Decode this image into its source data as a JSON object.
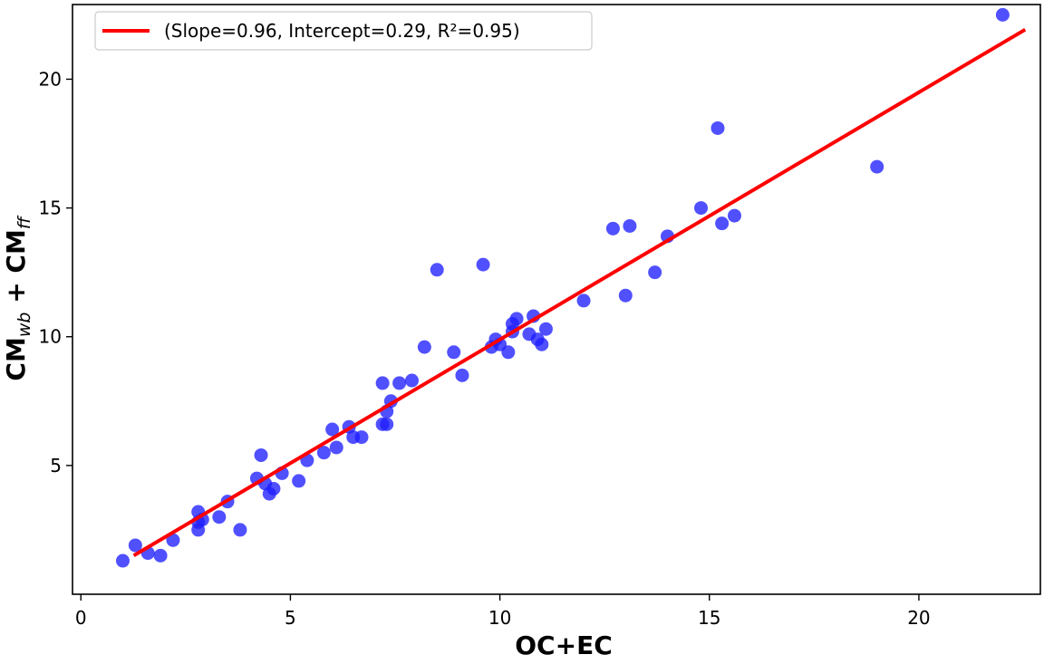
{
  "chart_data": {
    "type": "scatter",
    "xlabel": "OC+EC",
    "ylabel": {
      "base1": "CM",
      "sub1": "wb",
      "mid": " + CM",
      "sub2": "ff"
    },
    "xlim": [
      -0.2,
      22.9
    ],
    "ylim": [
      0.0,
      22.9
    ],
    "xticks": [
      0,
      5,
      10,
      15,
      20
    ],
    "yticks": [
      5,
      10,
      15,
      20
    ],
    "grid": false,
    "legend": {
      "position": "top-left",
      "label": "(Slope=0.96, Intercept=0.29, R²=0.95)"
    },
    "colors": {
      "points": "#1f1fff",
      "fit": "#ff0000"
    },
    "fit": {
      "slope": 0.96,
      "intercept": 0.29,
      "x_range": [
        1.3,
        22.5
      ]
    },
    "points": [
      [
        1.0,
        1.3
      ],
      [
        1.3,
        1.9
      ],
      [
        1.6,
        1.6
      ],
      [
        1.9,
        1.5
      ],
      [
        2.2,
        2.1
      ],
      [
        2.8,
        3.2
      ],
      [
        2.8,
        2.8
      ],
      [
        2.8,
        2.5
      ],
      [
        2.9,
        2.9
      ],
      [
        3.3,
        3.0
      ],
      [
        3.5,
        3.6
      ],
      [
        3.8,
        2.5
      ],
      [
        4.2,
        4.5
      ],
      [
        4.3,
        5.4
      ],
      [
        4.4,
        4.3
      ],
      [
        4.5,
        3.9
      ],
      [
        4.6,
        4.1
      ],
      [
        4.8,
        4.7
      ],
      [
        5.2,
        4.4
      ],
      [
        5.4,
        5.2
      ],
      [
        5.8,
        5.5
      ],
      [
        6.0,
        6.4
      ],
      [
        6.1,
        5.7
      ],
      [
        6.4,
        6.5
      ],
      [
        6.5,
        6.1
      ],
      [
        6.7,
        6.1
      ],
      [
        7.2,
        6.6
      ],
      [
        7.2,
        8.2
      ],
      [
        7.3,
        6.6
      ],
      [
        7.3,
        7.1
      ],
      [
        7.4,
        7.5
      ],
      [
        7.6,
        8.2
      ],
      [
        7.9,
        8.3
      ],
      [
        8.2,
        9.6
      ],
      [
        8.5,
        12.6
      ],
      [
        8.9,
        9.4
      ],
      [
        9.1,
        8.5
      ],
      [
        9.6,
        12.8
      ],
      [
        9.8,
        9.6
      ],
      [
        9.9,
        9.9
      ],
      [
        10.0,
        9.7
      ],
      [
        10.2,
        9.4
      ],
      [
        10.3,
        10.2
      ],
      [
        10.3,
        10.5
      ],
      [
        10.4,
        10.7
      ],
      [
        10.7,
        10.1
      ],
      [
        10.8,
        10.8
      ],
      [
        10.9,
        9.9
      ],
      [
        11.0,
        9.7
      ],
      [
        11.1,
        10.3
      ],
      [
        12.0,
        11.4
      ],
      [
        12.7,
        14.2
      ],
      [
        13.0,
        11.6
      ],
      [
        13.1,
        14.3
      ],
      [
        13.7,
        12.5
      ],
      [
        14.0,
        13.9
      ],
      [
        14.8,
        15.0
      ],
      [
        15.2,
        18.1
      ],
      [
        15.3,
        14.4
      ],
      [
        15.6,
        14.7
      ],
      [
        19.0,
        16.6
      ],
      [
        22.0,
        22.5
      ]
    ]
  }
}
